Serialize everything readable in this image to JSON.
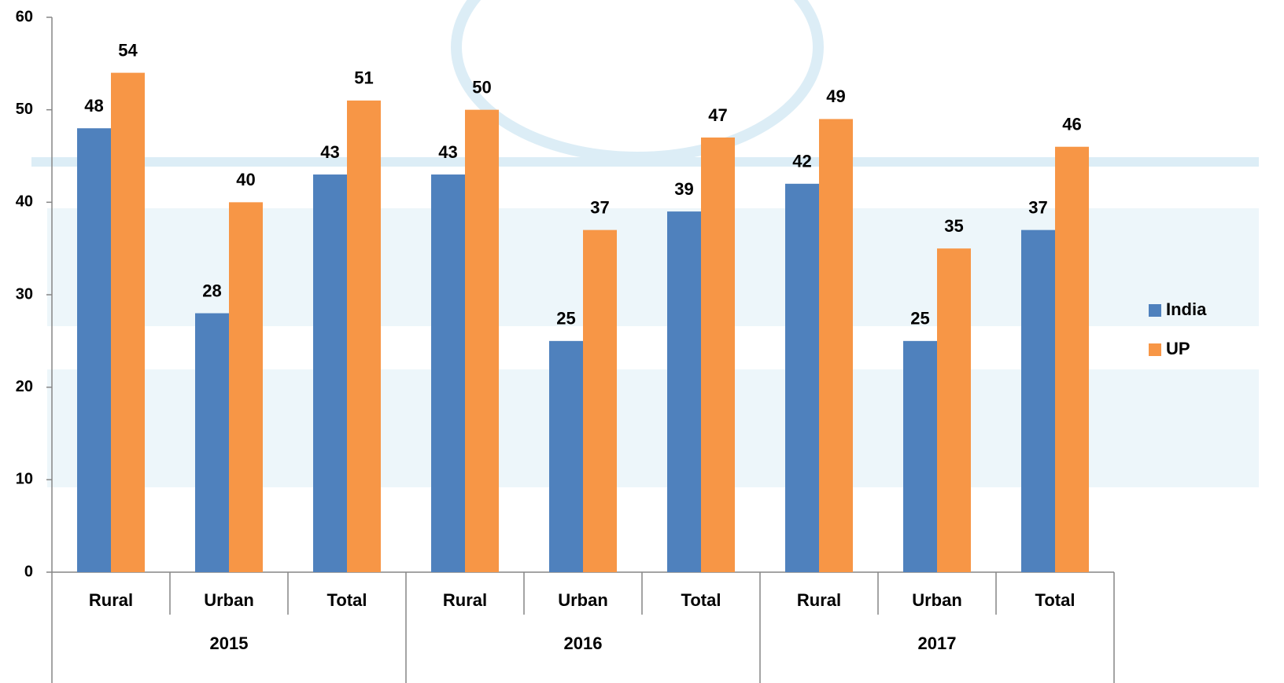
{
  "chart_data": {
    "type": "bar",
    "categories": [
      "Rural",
      "Urban",
      "Total",
      "Rural",
      "Urban",
      "Total",
      "Rural",
      "Urban",
      "Total"
    ],
    "groups": [
      "2015",
      "2016",
      "2017"
    ],
    "series": [
      {
        "name": "India",
        "color": "#4f81bd",
        "values": [
          48,
          28,
          43,
          43,
          25,
          39,
          42,
          25,
          37
        ]
      },
      {
        "name": "UP",
        "color": "#f79646",
        "values": [
          54,
          40,
          51,
          50,
          37,
          47,
          49,
          35,
          46
        ]
      }
    ],
    "ylim": [
      0,
      60
    ],
    "yticks": [
      0,
      10,
      20,
      30,
      40,
      50,
      60
    ],
    "legend": "right"
  }
}
